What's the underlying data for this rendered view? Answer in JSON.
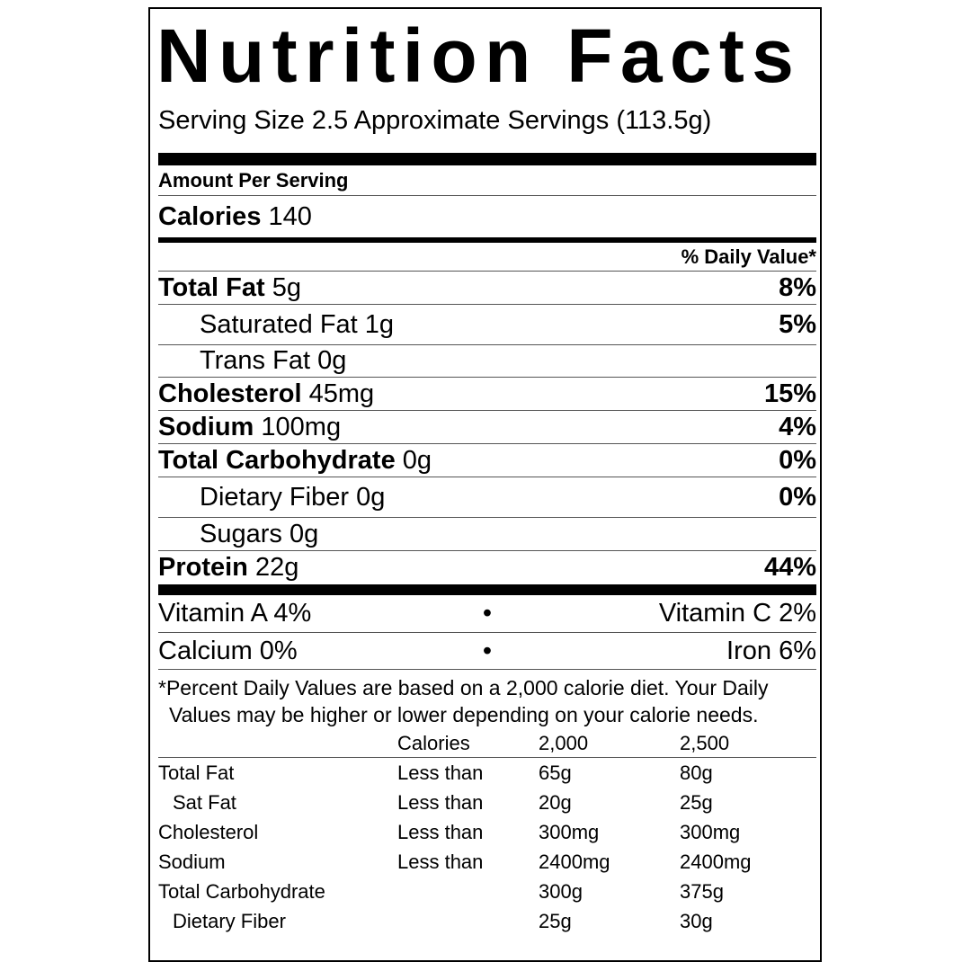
{
  "title": "Nutrition Facts",
  "serving_size": "Serving Size 2.5 Approximate Servings  (113.5g)",
  "amount_per_serving": "Amount Per Serving",
  "calories": {
    "label": "Calories",
    "value": "140"
  },
  "daily_value_header": "% Daily Value*",
  "nutrients": [
    {
      "label": "Total Fat",
      "amount": "5g",
      "dv": "8%"
    },
    {
      "label": "Saturated Fat",
      "amount": "1g",
      "dv": "5%"
    },
    {
      "label": "Trans Fat",
      "amount": "0g",
      "dv": ""
    },
    {
      "label": "Cholesterol",
      "amount": "45mg",
      "dv": "15%"
    },
    {
      "label": "Sodium",
      "amount": "100mg",
      "dv": "4%"
    },
    {
      "label": "Total Carbohydrate",
      "amount": "0g",
      "dv": "0%"
    },
    {
      "label": "Dietary Fiber",
      "amount": "0g",
      "dv": "0%"
    },
    {
      "label": "Sugars",
      "amount": "0g",
      "dv": ""
    },
    {
      "label": "Protein",
      "amount": "22g",
      "dv": "44%"
    }
  ],
  "vitamins": [
    {
      "left": "Vitamin A 4%",
      "right": "Vitamin C 2%"
    },
    {
      "left": "Calcium 0%",
      "right": "Iron 6%"
    }
  ],
  "bullet": "•",
  "footnote": [
    "*Percent Daily Values are based on a 2,000 calorie diet. Your Daily",
    "Values may be higher or lower depending on your calorie needs."
  ],
  "reference_table": {
    "header": [
      "",
      "Calories",
      "2,000",
      "2,500"
    ],
    "rows": [
      [
        "Total Fat",
        "Less than",
        "65g",
        "80g"
      ],
      [
        "Sat Fat",
        "Less than",
        "20g",
        "25g"
      ],
      [
        "Cholesterol",
        "Less than",
        "300mg",
        "300mg"
      ],
      [
        "Sodium",
        "Less than",
        "2400mg",
        "2400mg"
      ],
      [
        "Total Carbohydrate",
        "",
        "300g",
        "375g"
      ],
      [
        "Dietary Fiber",
        "",
        "25g",
        "30g"
      ]
    ]
  }
}
